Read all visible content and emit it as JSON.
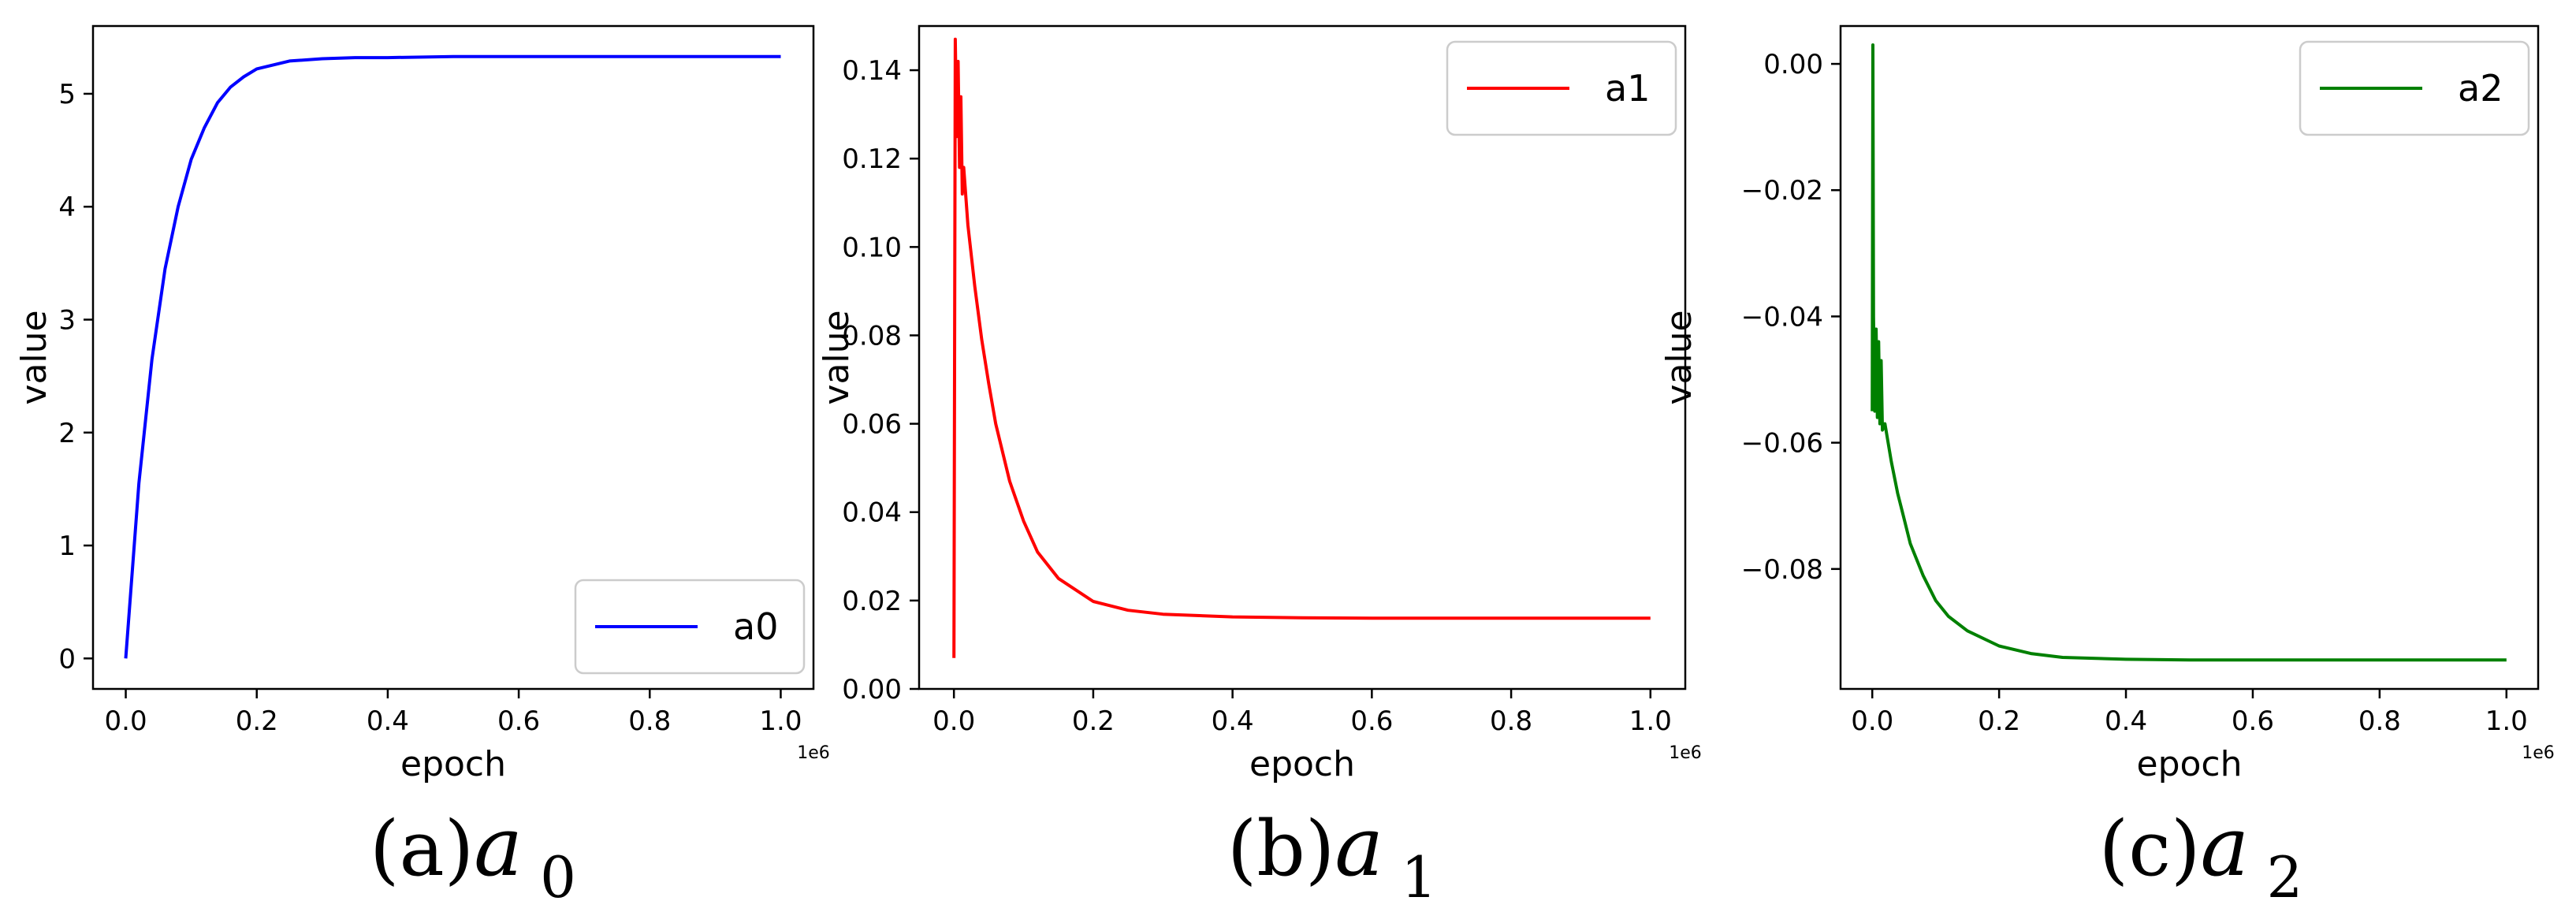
{
  "chart_data": [
    {
      "type": "line",
      "xlabel": "epoch",
      "ylabel": "value",
      "x_offset_label": "1e6",
      "xlim": [
        -0.05,
        1.05
      ],
      "ylim": [
        -0.27,
        5.6
      ],
      "xticks": [
        0.0,
        0.2,
        0.4,
        0.6,
        0.8,
        1.0
      ],
      "xtick_labels": [
        "0.0",
        "0.2",
        "0.4",
        "0.6",
        "0.8",
        "1.0"
      ],
      "yticks": [
        0,
        1,
        2,
        3,
        4,
        5
      ],
      "ytick_labels": [
        "0",
        "1",
        "2",
        "3",
        "4",
        "5"
      ],
      "legend_position": "lower-right",
      "caption_prefix": "(a)",
      "caption_var": "a",
      "caption_sub": "0",
      "series": [
        {
          "name": "a0",
          "color": "#0000ff",
          "x": [
            0.0,
            0.02,
            0.04,
            0.06,
            0.08,
            0.1,
            0.12,
            0.14,
            0.16,
            0.18,
            0.2,
            0.25,
            0.3,
            0.35,
            0.4,
            0.5,
            0.6,
            0.7,
            0.8,
            0.9,
            1.0
          ],
          "y": [
            0.0,
            1.55,
            2.65,
            3.45,
            4.0,
            4.42,
            4.7,
            4.92,
            5.06,
            5.15,
            5.22,
            5.29,
            5.31,
            5.32,
            5.32,
            5.33,
            5.33,
            5.33,
            5.33,
            5.33,
            5.33
          ]
        }
      ]
    },
    {
      "type": "line",
      "xlabel": "epoch",
      "ylabel": "value",
      "x_offset_label": "1e6",
      "xlim": [
        -0.05,
        1.05
      ],
      "ylim": [
        0.0,
        0.15
      ],
      "xticks": [
        0.0,
        0.2,
        0.4,
        0.6,
        0.8,
        1.0
      ],
      "xtick_labels": [
        "0.0",
        "0.2",
        "0.4",
        "0.6",
        "0.8",
        "1.0"
      ],
      "yticks": [
        0.0,
        0.02,
        0.04,
        0.06,
        0.08,
        0.1,
        0.12,
        0.14
      ],
      "ytick_labels": [
        "0.00",
        "0.02",
        "0.04",
        "0.06",
        "0.08",
        "0.10",
        "0.12",
        "0.14"
      ],
      "legend_position": "upper-right",
      "caption_prefix": "(b)",
      "caption_var": "a",
      "caption_sub": "1",
      "series": [
        {
          "name": "a1",
          "color": "#ff0000",
          "x": [
            0.0,
            0.002,
            0.004,
            0.006,
            0.008,
            0.01,
            0.012,
            0.014,
            0.02,
            0.03,
            0.04,
            0.05,
            0.06,
            0.08,
            0.1,
            0.12,
            0.15,
            0.2,
            0.25,
            0.3,
            0.4,
            0.5,
            0.6,
            0.7,
            0.8,
            0.9,
            1.0
          ],
          "y": [
            0.007,
            0.147,
            0.125,
            0.142,
            0.118,
            0.134,
            0.112,
            0.118,
            0.105,
            0.091,
            0.079,
            0.069,
            0.06,
            0.047,
            0.038,
            0.031,
            0.025,
            0.0198,
            0.0178,
            0.0169,
            0.0163,
            0.0161,
            0.016,
            0.016,
            0.016,
            0.016,
            0.016
          ]
        }
      ]
    },
    {
      "type": "line",
      "xlabel": "epoch",
      "ylabel": "value",
      "x_offset_label": "1e6",
      "xlim": [
        -0.05,
        1.05
      ],
      "ylim": [
        -0.099,
        0.006
      ],
      "xticks": [
        0.0,
        0.2,
        0.4,
        0.6,
        0.8,
        1.0
      ],
      "xtick_labels": [
        "0.0",
        "0.2",
        "0.4",
        "0.6",
        "0.8",
        "1.0"
      ],
      "yticks": [
        0.0,
        -0.02,
        -0.04,
        -0.06,
        -0.08
      ],
      "ytick_labels": [
        "0.00",
        "−0.02",
        "−0.04",
        "−0.06",
        "−0.08"
      ],
      "legend_position": "upper-right",
      "caption_prefix": "(c)",
      "caption_var": "a",
      "caption_sub": "2",
      "series": [
        {
          "name": "a2",
          "color": "#008000",
          "x": [
            0.0,
            0.001,
            0.002,
            0.004,
            0.006,
            0.008,
            0.01,
            0.012,
            0.014,
            0.016,
            0.02,
            0.03,
            0.04,
            0.05,
            0.06,
            0.08,
            0.1,
            0.12,
            0.15,
            0.2,
            0.25,
            0.3,
            0.4,
            0.5,
            0.6,
            0.8,
            1.0
          ],
          "y": [
            -0.055,
            0.003,
            -0.04,
            -0.055,
            -0.042,
            -0.056,
            -0.044,
            -0.057,
            -0.047,
            -0.058,
            -0.057,
            -0.063,
            -0.068,
            -0.072,
            -0.076,
            -0.081,
            -0.085,
            -0.0875,
            -0.0898,
            -0.0922,
            -0.0934,
            -0.094,
            -0.0943,
            -0.0944,
            -0.0944,
            -0.0944,
            -0.0944
          ]
        }
      ]
    }
  ]
}
